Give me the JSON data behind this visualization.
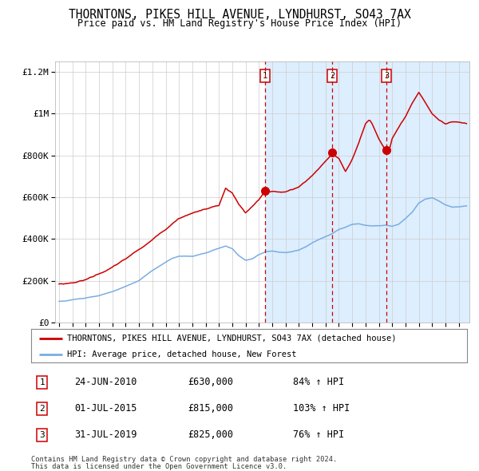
{
  "title": "THORNTONS, PIKES HILL AVENUE, LYNDHURST, SO43 7AX",
  "subtitle": "Price paid vs. HM Land Registry's House Price Index (HPI)",
  "legend_line1": "THORNTONS, PIKES HILL AVENUE, LYNDHURST, SO43 7AX (detached house)",
  "legend_line2": "HPI: Average price, detached house, New Forest",
  "footnote1": "Contains HM Land Registry data © Crown copyright and database right 2024.",
  "footnote2": "This data is licensed under the Open Government Licence v3.0.",
  "transactions": [
    {
      "num": 1,
      "date": "24-JUN-2010",
      "price": 630000,
      "pct": "84%",
      "dir": "↑"
    },
    {
      "num": 2,
      "date": "01-JUL-2015",
      "price": 815000,
      "pct": "103%",
      "dir": "↑"
    },
    {
      "num": 3,
      "date": "31-JUL-2019",
      "price": 825000,
      "pct": "76%",
      "dir": "↑"
    }
  ],
  "transaction_dates_decimal": [
    2010.48,
    2015.5,
    2019.58
  ],
  "trans_prices": [
    630000,
    815000,
    825000
  ],
  "shaded_start": 2010.48,
  "red_line_color": "#cc0000",
  "blue_line_color": "#7aade0",
  "shaded_color": "#ddeeff",
  "dashed_color": "#cc0000",
  "grid_color": "#cccccc",
  "background_color": "#ffffff",
  "ylim": [
    0,
    1250000
  ],
  "xlim_start": 1994.7,
  "xlim_end": 2025.8,
  "yticks": [
    0,
    200000,
    400000,
    600000,
    800000,
    1000000,
    1200000
  ],
  "ytick_labels": [
    "£0",
    "£200K",
    "£400K",
    "£600K",
    "£800K",
    "£1M",
    "£1.2M"
  ]
}
